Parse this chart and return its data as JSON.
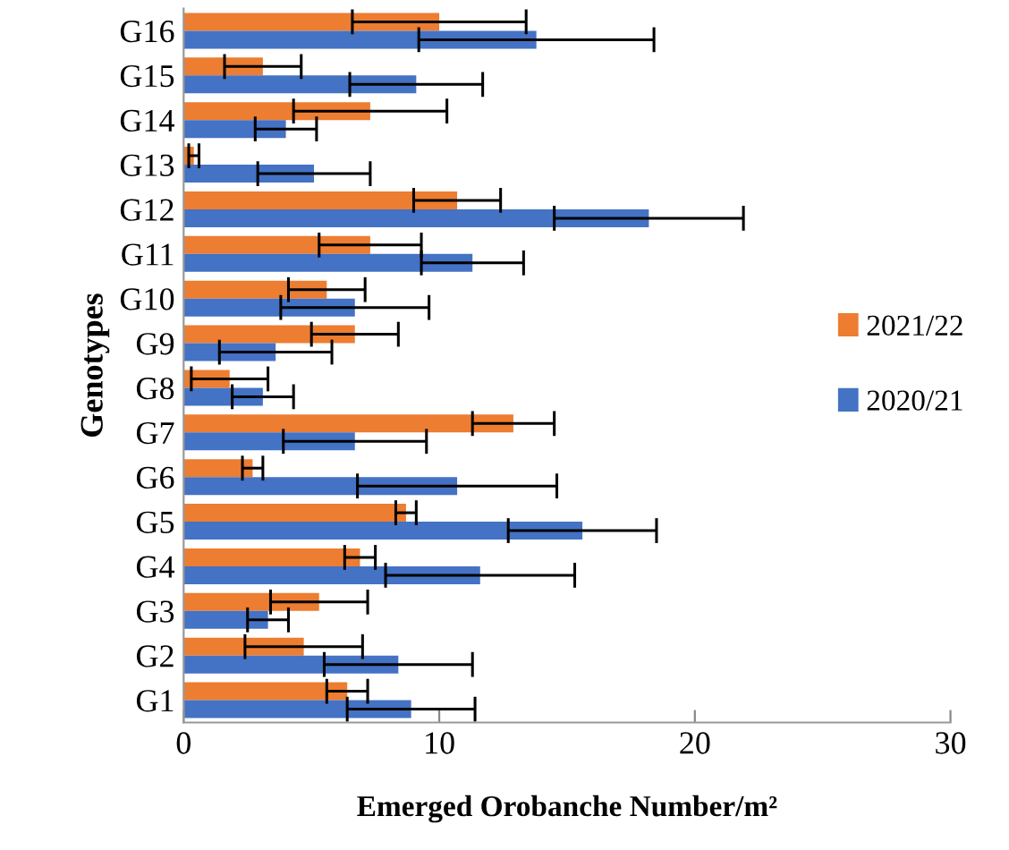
{
  "chart_data": {
    "type": "bar",
    "orientation": "horizontal",
    "xlabel": "Emerged Orobanche Number/m²",
    "ylabel": "Genotypes",
    "categories": [
      "G16",
      "G15",
      "G14",
      "G13",
      "G12",
      "G11",
      "G10",
      "G9",
      "G8",
      "G7",
      "G6",
      "G5",
      "G4",
      "G3",
      "G2",
      "G1"
    ],
    "series": [
      {
        "name": "2021/22",
        "color": "#ed7d31",
        "values": [
          10.0,
          3.1,
          7.3,
          0.4,
          10.7,
          7.3,
          5.6,
          6.7,
          1.8,
          12.9,
          2.7,
          8.7,
          6.9,
          5.3,
          4.7,
          6.4
        ],
        "errors": [
          3.4,
          1.5,
          3.0,
          0.2,
          1.7,
          2.0,
          1.5,
          1.7,
          1.5,
          1.6,
          0.4,
          0.4,
          0.6,
          1.9,
          2.3,
          0.8
        ]
      },
      {
        "name": "2020/21",
        "color": "#4472c4",
        "values": [
          13.8,
          9.1,
          4.0,
          5.1,
          18.2,
          11.3,
          6.7,
          3.6,
          3.1,
          6.7,
          10.7,
          15.6,
          11.6,
          3.3,
          8.4,
          8.9
        ],
        "errors": [
          4.6,
          2.6,
          1.2,
          2.2,
          3.7,
          2.0,
          2.9,
          2.2,
          1.2,
          2.8,
          3.9,
          2.9,
          3.7,
          0.8,
          2.9,
          2.5
        ]
      }
    ],
    "xlim": [
      0,
      30
    ],
    "xticks": [
      0,
      10,
      20,
      30
    ],
    "grid": false,
    "legend": "right"
  }
}
